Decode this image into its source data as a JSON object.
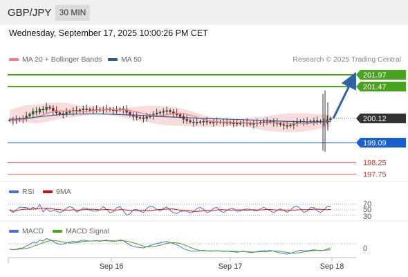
{
  "header": {
    "symbol": "GBP/JPY",
    "timeframe": "30 MIN"
  },
  "datetime": "Wednesday, September 17, 2025 10:00:26 PM CET",
  "legend": [
    {
      "label": "MA 20 + Bollinger Bands",
      "color": "#f08080"
    },
    {
      "label": "MA 50",
      "color": "#2e5a8f"
    }
  ],
  "research": "Research © 2025 Trading Central",
  "colors": {
    "green": "#4aa31f",
    "blue": "#1a5fd1",
    "red": "#e06060",
    "arrow": "#2f62a6",
    "bb_fill": "#f8d4d4",
    "dark": "#333333"
  },
  "price_levels": [
    {
      "label": "201.97",
      "value": 201.97,
      "style": "green-box"
    },
    {
      "label": "201.47",
      "value": 201.47,
      "style": "green-box"
    },
    {
      "label": "200.12",
      "value": 200.12,
      "style": "dark-box"
    },
    {
      "label": "199.09",
      "value": 199.09,
      "style": "blue-box"
    },
    {
      "label": "198.25",
      "value": 198.25,
      "style": "red-text"
    },
    {
      "label": "197.75",
      "value": 197.75,
      "style": "red-text"
    }
  ],
  "rsi_panel": {
    "legend": [
      {
        "label": "RSI",
        "color": "#4a6ed8"
      },
      {
        "label": "9MA",
        "color": "#cc1111"
      }
    ],
    "levels": [
      "70",
      "50",
      "30"
    ]
  },
  "macd_panel": {
    "legend": [
      {
        "label": "MACD",
        "color": "#4a6ed8"
      },
      {
        "label": "MACD Signal",
        "color": "#4aa31f"
      }
    ],
    "levels": [
      "0"
    ]
  },
  "x_axis": {
    "labels": [
      "Sep 16",
      "Sep 17",
      "Sep 18"
    ]
  },
  "chart_data": {
    "type": "candlestick",
    "symbol": "GBP/JPY",
    "interval": "30 MIN",
    "ylim": [
      197.5,
      202.2
    ],
    "close_series": [
      200.05,
      200.02,
      200.06,
      200.1,
      200.12,
      200.22,
      200.3,
      200.42,
      200.38,
      200.52,
      200.48,
      200.6,
      200.55,
      200.45,
      200.36,
      200.3,
      200.32,
      200.38,
      200.42,
      200.46,
      200.44,
      200.48,
      200.52,
      200.5,
      200.47,
      200.49,
      200.5,
      200.46,
      200.5,
      200.52,
      200.48,
      200.45,
      200.47,
      200.52,
      200.5,
      200.38,
      200.26,
      200.2,
      200.16,
      200.14,
      200.12,
      200.18,
      200.24,
      200.3,
      200.35,
      200.38,
      200.42,
      200.45,
      200.4,
      200.35,
      200.28,
      200.2,
      200.08,
      200.02,
      199.97,
      199.95,
      199.96,
      199.98,
      200.0,
      199.97,
      199.95,
      199.96,
      199.98,
      199.96,
      199.94,
      199.95,
      199.93,
      199.92,
      199.9,
      199.93,
      199.95,
      199.91,
      199.88,
      199.9,
      199.93,
      199.96,
      199.98,
      199.97,
      199.99,
      199.95,
      199.9,
      199.86,
      199.82,
      199.8,
      199.84,
      199.9,
      199.96,
      200.0,
      199.98,
      199.97,
      200.0,
      200.02,
      200.0,
      199.98,
      200.0,
      200.06,
      200.12
    ],
    "ma50_points": [
      200.08,
      200.12,
      200.2,
      200.27,
      200.3,
      200.31,
      200.3,
      200.28,
      200.25,
      200.21,
      200.18,
      200.15,
      200.12,
      200.1,
      200.08,
      200.05,
      200.03,
      200.0,
      199.98,
      199.97,
      199.98
    ],
    "spike_low": 198.75,
    "spike_high": 201.15,
    "forecast_arrow": {
      "from": 200.12,
      "to": 201.97
    },
    "rsi_levels": [
      70,
      50,
      30
    ],
    "x_labels": [
      "Sep 16",
      "Sep 17",
      "Sep 18"
    ]
  }
}
